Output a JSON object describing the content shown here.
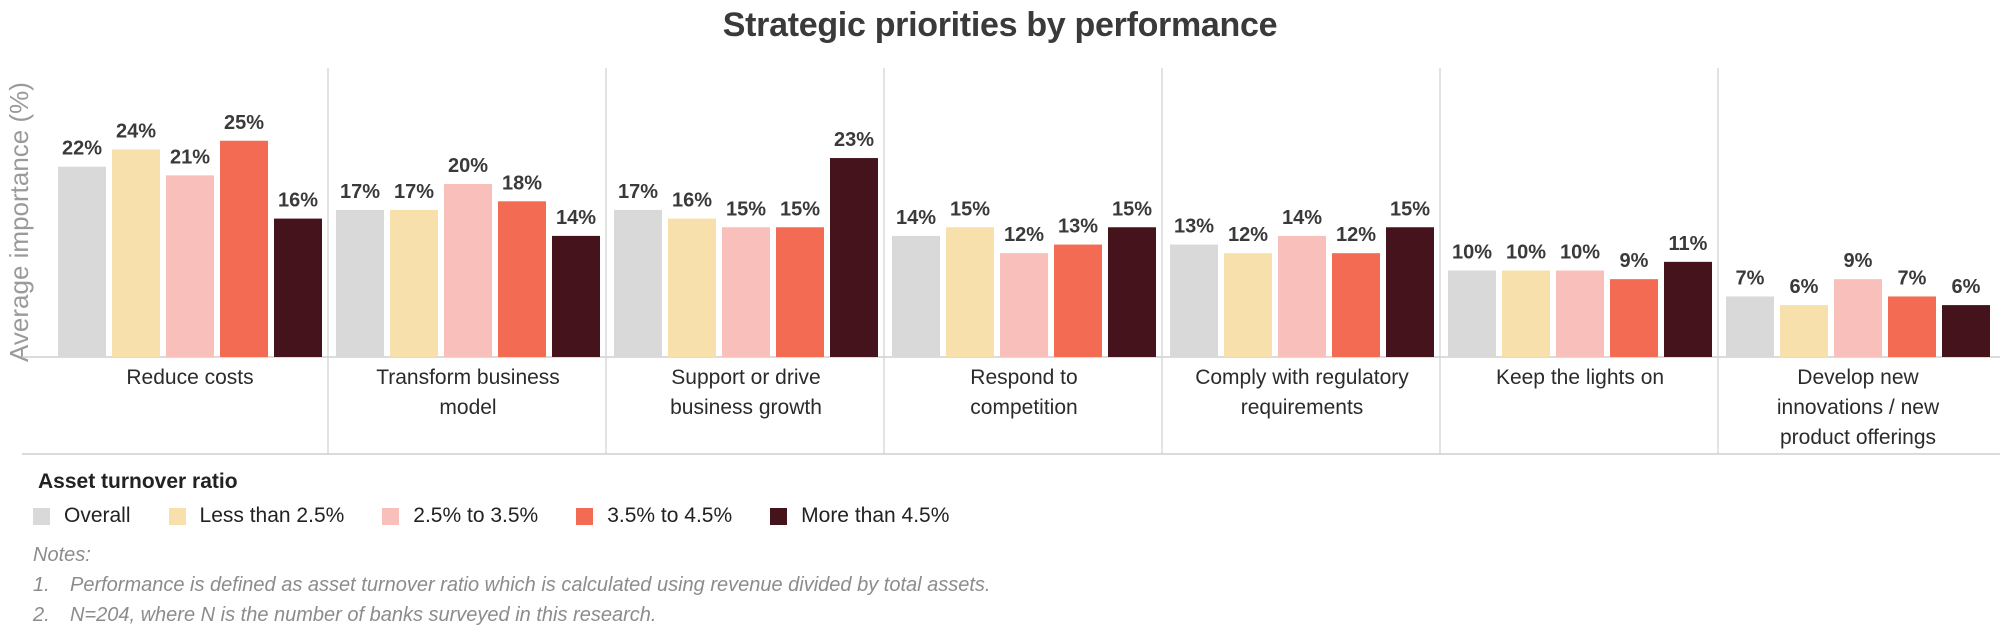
{
  "chart_data": {
    "type": "bar",
    "title": "Strategic priorities by performance",
    "ylabel": "Average importance (%)",
    "categories": [
      [
        "Reduce costs"
      ],
      [
        "Transform business",
        "model"
      ],
      [
        "Support or drive",
        "business growth"
      ],
      [
        "Respond to",
        "competition"
      ],
      [
        "Comply with regulatory",
        "requirements"
      ],
      [
        "Keep the lights on"
      ],
      [
        "Develop new",
        "innovations / new",
        "product offerings"
      ]
    ],
    "series": [
      {
        "name": "Overall",
        "color": "#d9d9d9",
        "values": [
          22,
          17,
          17,
          14,
          13,
          10,
          7
        ]
      },
      {
        "name": "Less than 2.5%",
        "color": "#f8e0ac",
        "values": [
          24,
          17,
          16,
          15,
          12,
          10,
          6
        ]
      },
      {
        "name": "2.5% to 3.5%",
        "color": "#f9c0bb",
        "values": [
          21,
          20,
          15,
          12,
          14,
          10,
          9
        ]
      },
      {
        "name": "3.5% to 4.5%",
        "color": "#f26b52",
        "values": [
          25,
          18,
          15,
          13,
          12,
          9,
          7
        ]
      },
      {
        "name": "More than 4.5%",
        "color": "#45131c",
        "values": [
          16,
          14,
          23,
          15,
          15,
          11,
          6
        ]
      }
    ],
    "value_suffix": "%",
    "ylim": [
      0,
      30
    ],
    "grid": false,
    "legend_title": "Asset turnover ratio",
    "legend_position": "bottom-left",
    "notes": {
      "heading": "Notes:",
      "items": [
        {
          "num": "1.",
          "text": "Performance is defined as asset turnover ratio which is calculated using revenue divided by total assets."
        },
        {
          "num": "2.",
          "text": "N=204, where N is the number of banks surveyed in this research."
        }
      ]
    }
  }
}
